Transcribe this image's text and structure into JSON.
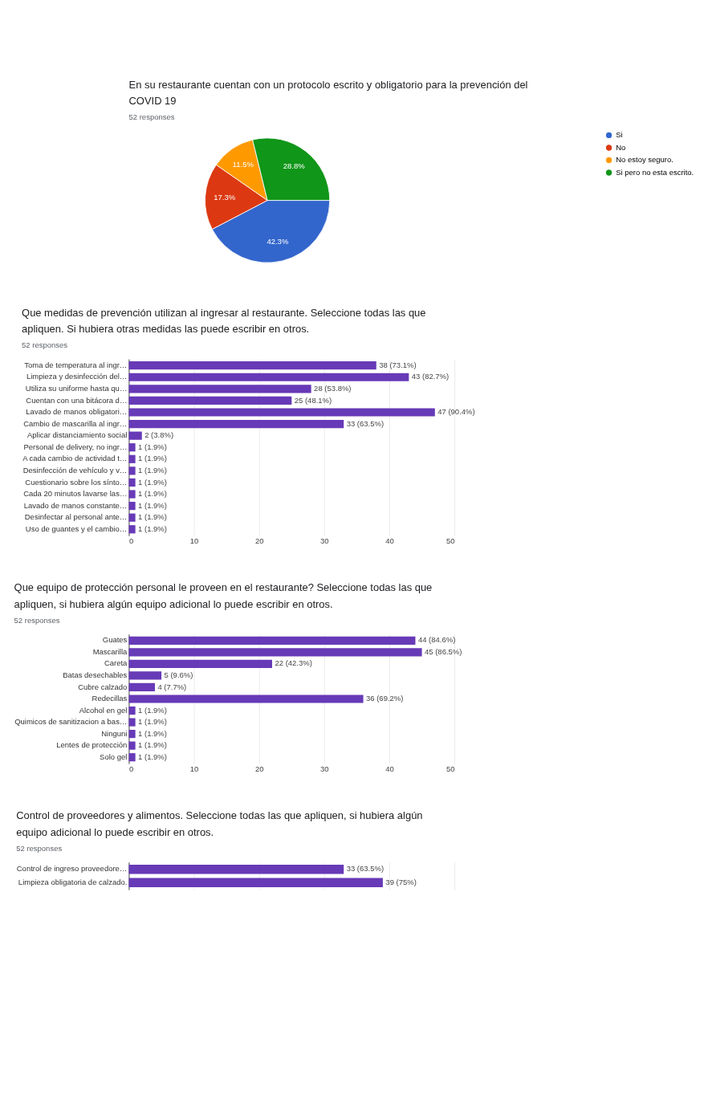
{
  "chart_data": [
    {
      "type": "pie",
      "title": "En su restaurante cuentan con un protocolo escrito y obligatorio para la prevención del COVID 19",
      "subtitle": "52 responses",
      "categories": [
        "Si",
        "No",
        "No estoy seguro.",
        "Si pero no esta escrito."
      ],
      "values": [
        42.3,
        17.3,
        11.5,
        28.8
      ],
      "colors": [
        "#3366cc",
        "#dc3912",
        "#ff9900",
        "#109618"
      ],
      "value_labels": [
        "42.3%",
        "17.3%",
        "11.5%",
        "28.8%"
      ],
      "legend": "right"
    },
    {
      "type": "bar",
      "orientation": "horizontal",
      "title": "Que medidas de prevención utilizan al ingresar al restaurante. Seleccione todas las que apliquen. Si hubiera otras medidas las puede escribir en otros.",
      "subtitle": "52 responses",
      "categories": [
        "Toma de temperatura al ingr…",
        "Limpieza y desinfección del…",
        "Utiliza su uniforme hasta qu…",
        "Cuentan con una bitácora d…",
        "Lavado de manos obligatori…",
        "Cambio de mascarilla al ingr…",
        "Aplicar distanciamiento social",
        "Personal de delivery, no ingr…",
        "A cada cambio de actividad t…",
        "Desinfección de vehículo y v…",
        "Cuestionario sobre los sínto…",
        "Cada 20 minutos lavarse las…",
        "Lavado de manos constante…",
        "Desinfectar al personal ante…",
        "Uso de guantes y el cambio…"
      ],
      "values": [
        38,
        43,
        28,
        25,
        47,
        33,
        2,
        1,
        1,
        1,
        1,
        1,
        1,
        1,
        1
      ],
      "color": "#673ab7",
      "value_labels": [
        "38 (73.1%)",
        "43 (82.7%)",
        "28 (53.8%)",
        "25 (48.1%)",
        "47 (90.4%)",
        "33 (63.5%)",
        "2 (3.8%)",
        "1 (1.9%)",
        "1 (1.9%)",
        "1 (1.9%)",
        "1 (1.9%)",
        "1 (1.9%)",
        "1 (1.9%)",
        "1 (1.9%)",
        "1 (1.9%)"
      ],
      "xlim": [
        0,
        50
      ],
      "xticks": [
        0,
        10,
        20,
        30,
        40,
        50
      ],
      "grid": "x"
    },
    {
      "type": "bar",
      "orientation": "horizontal",
      "title": "Que equipo de protección personal le proveen en el restaurante? Seleccione todas las que apliquen, si hubiera algún equipo adicional lo puede escribir en otros.",
      "subtitle": "52 responses",
      "categories": [
        "Guates",
        "Mascarilla",
        "Careta",
        "Batas desechables",
        "Cubre calzado",
        "Redecillas",
        "Alcohol en gel",
        "Quimicos de sanitizacion a bas…",
        "Ninguni",
        "Lentes de protección",
        "Solo gel"
      ],
      "values": [
        44,
        45,
        22,
        5,
        4,
        36,
        1,
        1,
        1,
        1,
        1
      ],
      "color": "#673ab7",
      "value_labels": [
        "44 (84.6%)",
        "45 (86.5%)",
        "22 (42.3%)",
        "5 (9.6%)",
        "4 (7.7%)",
        "36 (69.2%)",
        "1 (1.9%)",
        "1 (1.9%)",
        "1 (1.9%)",
        "1 (1.9%)",
        "1 (1.9%)"
      ],
      "xlim": [
        0,
        50
      ],
      "xticks": [
        0,
        10,
        20,
        30,
        40,
        50
      ],
      "grid": "x"
    },
    {
      "type": "bar",
      "orientation": "horizontal",
      "title": "Control de proveedores y alimentos. Seleccione todas las que apliquen, si hubiera algún equipo adicional lo puede escribir en otros.",
      "subtitle": "52 responses",
      "categories": [
        "Control de ingreso proveedore…",
        "Limpieza obligatoria de calzado."
      ],
      "values": [
        33,
        39
      ],
      "color": "#673ab7",
      "value_labels": [
        "33 (63.5%)",
        "39 (75%)"
      ],
      "xlim": [
        0,
        50
      ],
      "xticks": [
        {
          "value": 0,
          "label": null
        },
        {
          "value": 10,
          "label": null
        },
        {
          "value": 20,
          "label": null
        },
        {
          "value": 30,
          "label": null
        },
        {
          "value": 40,
          "label": null
        },
        {
          "value": 50,
          "label": null
        }
      ],
      "grid": "x",
      "tick_labels": "y"
    }
  ]
}
